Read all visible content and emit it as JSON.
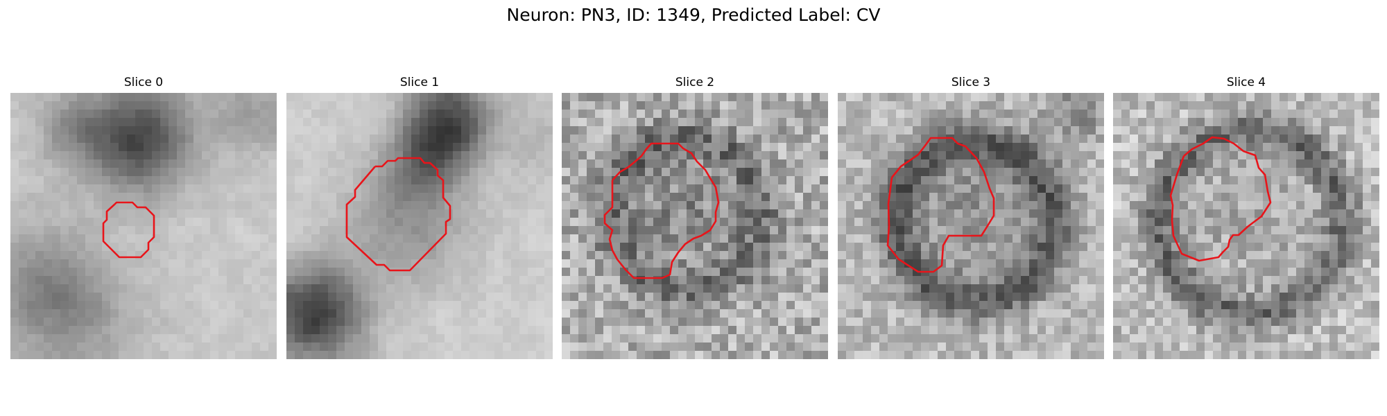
{
  "figure": {
    "title": "Neuron: PN3, ID: 1349, Predicted Label: CV"
  },
  "colors": {
    "contour": "#e8141a",
    "background": "#ffffff"
  },
  "slices": [
    {
      "label": "Slice 0"
    },
    {
      "label": "Slice 1"
    },
    {
      "label": "Slice 2"
    },
    {
      "label": "Slice 3"
    },
    {
      "label": "Slice 4"
    }
  ]
}
